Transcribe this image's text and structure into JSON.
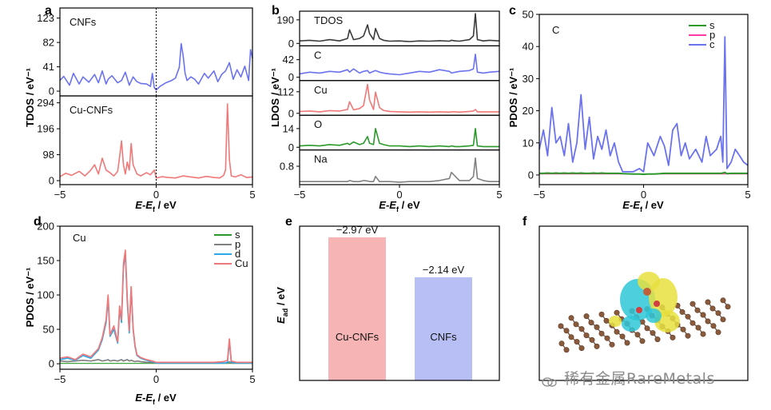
{
  "figure": {
    "panel_letters": [
      "a",
      "b",
      "c",
      "d",
      "e",
      "f"
    ],
    "watermark": "稀有金属RareMetals"
  },
  "chart_data": [
    {
      "id": "a",
      "type": "line",
      "xlabel_parts": [
        "E",
        "-E",
        "f",
        " / eV"
      ],
      "ylabel": "TDOS / eV⁻¹",
      "xlim": [
        -5,
        5
      ],
      "xticks": [
        "−5",
        "0",
        "5"
      ],
      "fermi_line": 0,
      "subplots": [
        {
          "label": "CNFs",
          "color": "#6b72f0",
          "ylim": [
            -8,
            140
          ],
          "yticks": [
            0,
            41,
            82,
            123
          ],
          "x": [
            -5,
            -4.8,
            -4.5,
            -4.3,
            -4.0,
            -3.8,
            -3.5,
            -3.2,
            -3.0,
            -2.8,
            -2.6,
            -2.5,
            -2.3,
            -2.0,
            -1.8,
            -1.6,
            -1.4,
            -1.2,
            -1.0,
            -0.8,
            -0.5,
            -0.3,
            -0.2,
            -0.1,
            0,
            0.2,
            0.5,
            0.8,
            1.0,
            1.2,
            1.3,
            1.4,
            1.5,
            1.6,
            1.8,
            2.0,
            2.2,
            2.5,
            2.7,
            3.0,
            3.2,
            3.4,
            3.6,
            3.8,
            4.0,
            4.2,
            4.4,
            4.6,
            4.8,
            4.9,
            5.0
          ],
          "values": [
            18,
            25,
            10,
            30,
            12,
            24,
            15,
            28,
            14,
            34,
            12,
            20,
            26,
            14,
            18,
            32,
            10,
            24,
            16,
            13,
            12,
            8,
            30,
            6,
            2,
            8,
            14,
            18,
            22,
            40,
            80,
            60,
            30,
            18,
            24,
            20,
            12,
            30,
            22,
            34,
            16,
            28,
            34,
            48,
            20,
            36,
            24,
            42,
            18,
            70,
            55
          ]
        },
        {
          "label": "Cu-CNFs",
          "color": "#f07878",
          "ylim": [
            -15,
            320
          ],
          "yticks": [
            0,
            98,
            196,
            294
          ],
          "x": [
            -5,
            -4.7,
            -4.4,
            -4.0,
            -3.7,
            -3.4,
            -3.2,
            -3.0,
            -2.8,
            -2.6,
            -2.4,
            -2.2,
            -2.0,
            -1.9,
            -1.8,
            -1.7,
            -1.6,
            -1.5,
            -1.4,
            -1.3,
            -1.2,
            -1.0,
            -0.8,
            -0.5,
            -0.3,
            -0.1,
            0,
            0.3,
            0.6,
            1.0,
            1.4,
            1.8,
            2.2,
            2.6,
            3.0,
            3.3,
            3.5,
            3.6,
            3.7,
            3.8,
            3.9,
            4.1,
            4.4,
            4.7,
            5.0
          ],
          "values": [
            15,
            28,
            20,
            35,
            18,
            40,
            60,
            25,
            85,
            40,
            30,
            18,
            35,
            90,
            150,
            60,
            25,
            70,
            40,
            140,
            60,
            25,
            18,
            30,
            22,
            40,
            10,
            15,
            12,
            10,
            18,
            14,
            10,
            16,
            12,
            10,
            20,
            40,
            290,
            80,
            18,
            14,
            22,
            12,
            14
          ]
        }
      ]
    },
    {
      "id": "b",
      "type": "line",
      "xlabel_parts": [
        "E",
        "-E",
        "f",
        " / eV"
      ],
      "ylabel": "LDOS / eV⁻¹",
      "xlim": [
        -5,
        5
      ],
      "xticks": [
        "−5",
        "0",
        "5"
      ],
      "x": [
        -5,
        -4.5,
        -4.0,
        -3.5,
        -3.0,
        -2.6,
        -2.5,
        -2.3,
        -2.0,
        -1.8,
        -1.6,
        -1.5,
        -1.3,
        -1.2,
        -1.0,
        -0.8,
        -0.5,
        0,
        0.5,
        1.0,
        1.5,
        2.0,
        2.5,
        2.6,
        2.8,
        3.0,
        3.5,
        3.7,
        3.8,
        3.9,
        4.2,
        4.5,
        5.0
      ],
      "subplots": [
        {
          "label": "TDOS",
          "color": "#3a3a3a",
          "ylim": [
            -20,
            260
          ],
          "yticks": [
            0,
            190
          ],
          "values": [
            20,
            25,
            18,
            30,
            20,
            40,
            110,
            30,
            40,
            60,
            150,
            80,
            30,
            120,
            40,
            25,
            18,
            20,
            15,
            20,
            18,
            22,
            18,
            25,
            20,
            18,
            30,
            60,
            240,
            30,
            20,
            25,
            20
          ]
        },
        {
          "label": "C",
          "color": "#6b72f0",
          "ylim": [
            -8,
            75
          ],
          "yticks": [
            0,
            42
          ],
          "values": [
            8,
            12,
            10,
            14,
            12,
            18,
            12,
            20,
            10,
            14,
            16,
            10,
            14,
            16,
            12,
            10,
            8,
            6,
            10,
            14,
            12,
            18,
            14,
            10,
            12,
            14,
            16,
            20,
            55,
            12,
            10,
            12,
            14
          ]
        },
        {
          "label": "Cu",
          "color": "#f07878",
          "ylim": [
            -10,
            170
          ],
          "yticks": [
            0,
            112
          ],
          "values": [
            10,
            12,
            8,
            14,
            12,
            20,
            60,
            18,
            25,
            40,
            150,
            70,
            20,
            110,
            30,
            15,
            10,
            8,
            6,
            8,
            6,
            8,
            6,
            8,
            8,
            6,
            10,
            12,
            20,
            8,
            8,
            8,
            8
          ]
        },
        {
          "label": "O",
          "color": "#2b9a2b",
          "ylim": [
            -2,
            24
          ],
          "yticks": [
            0,
            14
          ],
          "values": [
            1,
            1.5,
            1,
            2,
            1.5,
            3,
            2,
            4,
            2,
            3,
            8,
            3,
            2,
            14,
            3,
            2,
            1,
            1,
            0.5,
            1,
            0.5,
            1,
            0.5,
            1,
            0.5,
            0.5,
            1,
            1.5,
            14,
            1,
            0.5,
            0.5,
            0.5
          ]
        },
        {
          "label": "Na",
          "color": "#808080",
          "ylim": [
            -0.1,
            1.6
          ],
          "yticks": [
            0.8
          ],
          "values": [
            0.05,
            0.05,
            0.05,
            0.05,
            0.05,
            0.05,
            0.1,
            0.05,
            0.05,
            0.1,
            0.08,
            0.05,
            0.05,
            0.3,
            0.05,
            0.05,
            0.05,
            0.02,
            0.05,
            0.05,
            0.05,
            0.1,
            0.2,
            0.5,
            0.3,
            0.1,
            0.1,
            0.3,
            1.2,
            0.2,
            0.1,
            0.05,
            0.05
          ]
        }
      ]
    },
    {
      "id": "c",
      "type": "line",
      "annotation": "C",
      "xlabel_parts": [
        "E",
        "-E",
        "f",
        " / eV"
      ],
      "ylabel": "PDOS / eV⁻¹",
      "xlim": [
        -5,
        5
      ],
      "ylim": [
        -3,
        50
      ],
      "xticks": [
        "−5",
        "0",
        "5"
      ],
      "yticks": [
        0,
        10,
        20,
        30,
        40,
        50
      ],
      "legend": [
        "s",
        "p",
        "c"
      ],
      "legend_colors": [
        "#2b9a2b",
        "#ff3aa0",
        "#6b72f0"
      ],
      "x": [
        -5,
        -4.8,
        -4.6,
        -4.4,
        -4.2,
        -4.0,
        -3.8,
        -3.6,
        -3.4,
        -3.2,
        -3.0,
        -2.8,
        -2.6,
        -2.4,
        -2.2,
        -2.0,
        -1.8,
        -1.6,
        -1.4,
        -1.2,
        -1.0,
        -0.5,
        -0.2,
        0,
        0.2,
        0.5,
        0.8,
        1.0,
        1.2,
        1.4,
        1.6,
        1.8,
        2.0,
        2.2,
        2.5,
        2.8,
        3.0,
        3.2,
        3.5,
        3.7,
        3.8,
        3.9,
        4.0,
        4.2,
        4.4,
        4.6,
        4.8,
        5.0
      ],
      "series": [
        {
          "name": "s",
          "values": [
            0.5,
            0.5,
            0.6,
            0.5,
            0.6,
            0.5,
            0.6,
            0.5,
            0.6,
            0.5,
            0.6,
            0.5,
            0.5,
            0.6,
            0.5,
            0.6,
            0.5,
            0.5,
            0.5,
            0.5,
            0.4,
            0.3,
            0.3,
            0.2,
            0.3,
            0.3,
            0.4,
            0.5,
            0.5,
            0.5,
            0.5,
            0.5,
            0.5,
            0.5,
            0.5,
            0.5,
            0.5,
            0.5,
            0.5,
            0.5,
            0.6,
            0.8,
            0.4,
            0.5,
            0.5,
            0.5,
            0.5,
            0.5
          ]
        },
        {
          "name": "c",
          "values": [
            8,
            14,
            6,
            21,
            10,
            12,
            6,
            16,
            4,
            10,
            25,
            8,
            18,
            5,
            12,
            8,
            14,
            6,
            10,
            4,
            1,
            1,
            2,
            1,
            10,
            6,
            12,
            9,
            3,
            14,
            16,
            6,
            10,
            5,
            8,
            4,
            12,
            6,
            8,
            12,
            4,
            43,
            2,
            4,
            8,
            6,
            4,
            3
          ]
        }
      ]
    },
    {
      "id": "d",
      "type": "line",
      "annotation": "Cu",
      "xlabel_parts": [
        "E",
        "-E",
        "f",
        " / eV"
      ],
      "ylabel": "PDOS / eV⁻¹",
      "xlim": [
        -5,
        5
      ],
      "ylim": [
        -8,
        200
      ],
      "xticks": [
        "−5",
        "0",
        "5"
      ],
      "yticks": [
        0,
        50,
        100,
        150,
        200
      ],
      "legend": [
        "s",
        "p",
        "d",
        "Cu"
      ],
      "legend_colors": [
        "#2b9a2b",
        "#808080",
        "#2ea8e8",
        "#f07878"
      ],
      "x": [
        -5,
        -4.6,
        -4.2,
        -3.8,
        -3.4,
        -3.0,
        -2.8,
        -2.6,
        -2.5,
        -2.4,
        -2.2,
        -2.0,
        -1.9,
        -1.8,
        -1.7,
        -1.6,
        -1.5,
        -1.4,
        -1.3,
        -1.2,
        -1.1,
        -1.0,
        -0.8,
        -0.5,
        -0.2,
        0,
        0.5,
        1.0,
        1.5,
        2.0,
        2.5,
        3.0,
        3.5,
        3.7,
        3.8,
        3.9,
        4.2,
        4.6,
        5.0
      ],
      "series": [
        {
          "name": "p",
          "values": [
            4,
            3,
            4,
            5,
            4,
            6,
            4,
            5,
            6,
            4,
            5,
            4,
            5,
            6,
            4,
            5,
            6,
            4,
            5,
            4,
            3,
            4,
            3,
            2,
            2,
            1,
            1,
            1,
            1,
            1,
            1,
            1,
            1,
            1,
            3,
            1,
            1,
            1,
            1
          ]
        },
        {
          "name": "d",
          "values": [
            6,
            8,
            5,
            12,
            8,
            20,
            35,
            60,
            95,
            40,
            50,
            30,
            80,
            60,
            140,
            160,
            90,
            45,
            110,
            50,
            25,
            12,
            8,
            5,
            3,
            1,
            1,
            1,
            1,
            1,
            1,
            1,
            1,
            2,
            33,
            2,
            1,
            1,
            1
          ]
        },
        {
          "name": "Cu",
          "values": [
            8,
            10,
            6,
            14,
            10,
            22,
            38,
            64,
            100,
            42,
            55,
            32,
            84,
            64,
            145,
            165,
            95,
            48,
            112,
            52,
            27,
            13,
            9,
            6,
            4,
            2,
            2,
            2,
            2,
            2,
            2,
            2,
            3,
            5,
            36,
            4,
            2,
            2,
            2
          ]
        }
      ]
    },
    {
      "id": "e",
      "type": "bar",
      "ylabel_parts": [
        "E",
        "ad",
        " / eV"
      ],
      "categories": [
        "Cu-CNFs",
        "CNFs"
      ],
      "values": [
        -2.97,
        -2.14
      ],
      "value_labels": [
        "−2.97 eV",
        "−2.14 eV"
      ],
      "colors": [
        "#f7b4b4",
        "#b8bff5"
      ]
    }
  ]
}
